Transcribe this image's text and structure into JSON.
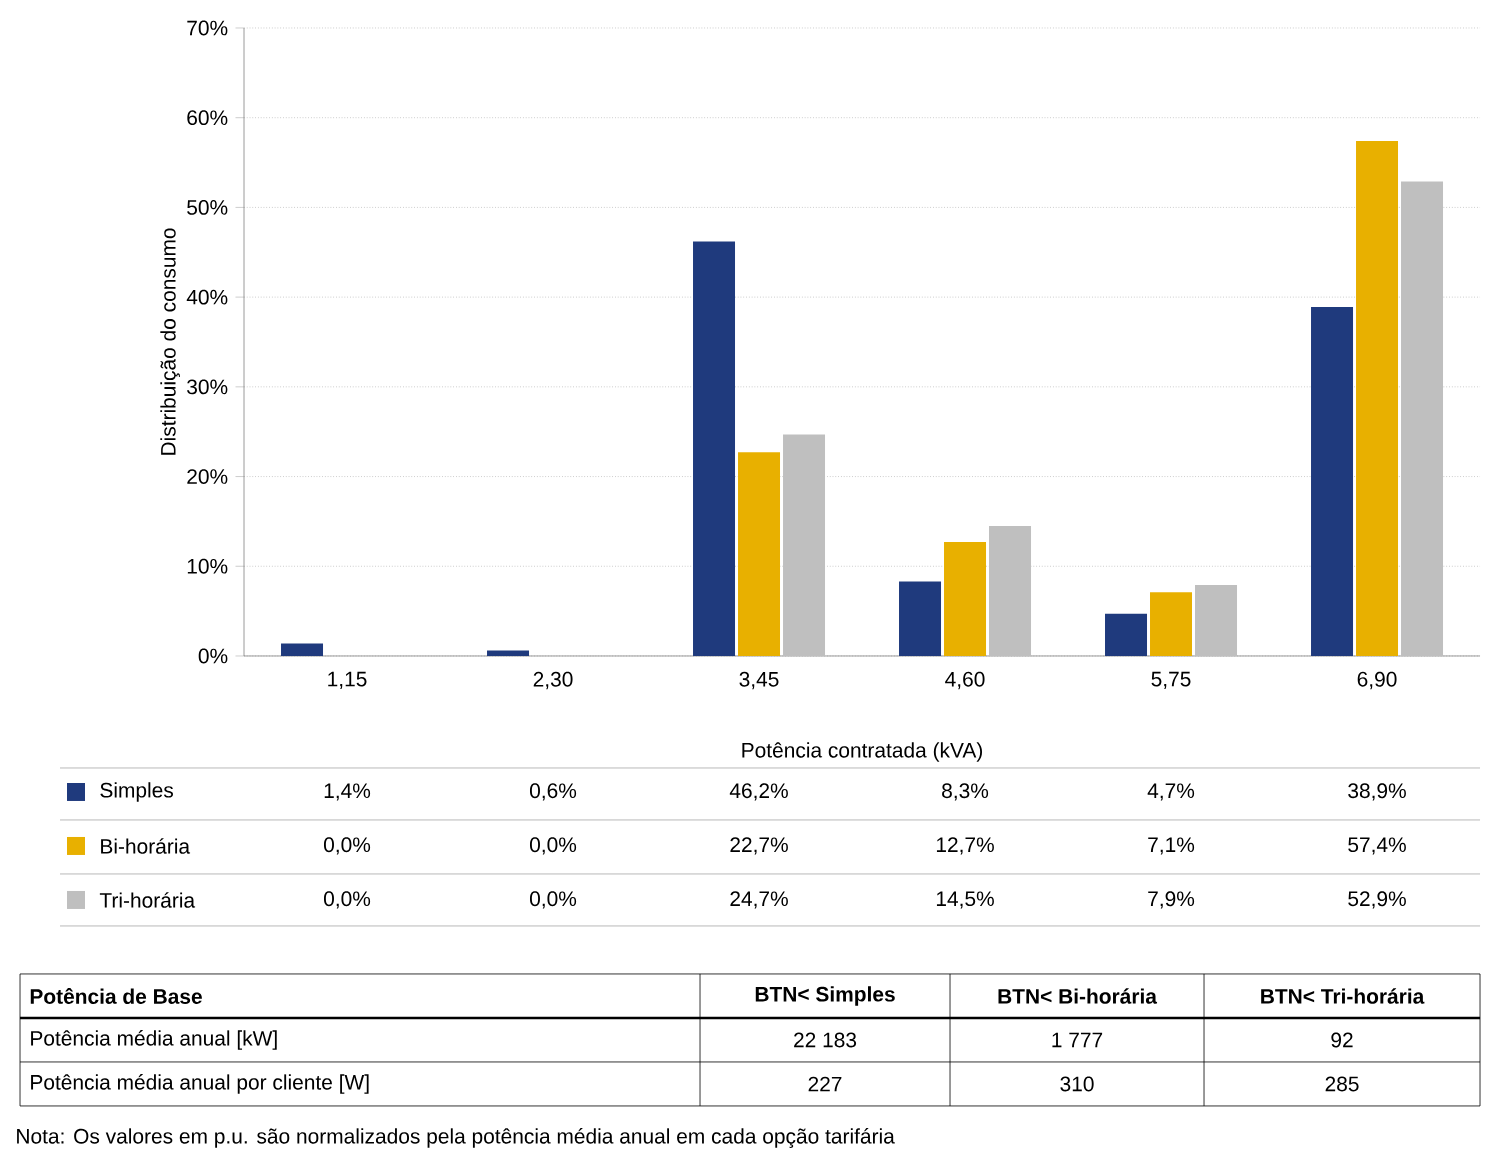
{
  "chart_data": [
    {
      "type": "bar",
      "xlabel": "Potência contratada (kVA)",
      "ylabel": "Distribuição do consumo",
      "categories": [
        "1,15",
        "2,30",
        "3,45",
        "4,60",
        "5,75",
        "6,90"
      ],
      "series": [
        {
          "name": "Simples",
          "color": "#1f3a7d",
          "values": [
            1.4,
            0.6,
            46.2,
            8.3,
            4.7,
            38.9
          ],
          "value_labels": [
            "1,4%",
            "0,6%",
            "46,2%",
            "8,3%",
            "4,7%",
            "38,9%"
          ]
        },
        {
          "name": "Bi-horária",
          "color": "#e8b000",
          "values": [
            0.0,
            0.0,
            22.7,
            12.7,
            7.1,
            57.4
          ],
          "value_labels": [
            "0,0%",
            "0,0%",
            "22,7%",
            "12,7%",
            "7,1%",
            "57,4%"
          ]
        },
        {
          "name": "Tri-horária",
          "color": "#bfbfbf",
          "values": [
            0.0,
            0.0,
            24.7,
            14.5,
            7.9,
            52.9
          ],
          "value_labels": [
            "0,0%",
            "0,0%",
            "24,7%",
            "14,5%",
            "7,9%",
            "52,9%"
          ]
        }
      ],
      "ylim": [
        0,
        70
      ],
      "yticks": [
        {
          "value": 0,
          "label": "0%"
        },
        {
          "value": 10,
          "label": "10%"
        },
        {
          "value": 20,
          "label": "20%"
        },
        {
          "value": 30,
          "label": "30%"
        },
        {
          "value": 40,
          "label": "40%"
        },
        {
          "value": 50,
          "label": "50%"
        },
        {
          "value": 60,
          "label": "60%"
        },
        {
          "value": 70,
          "label": "70%"
        }
      ],
      "grid": "y",
      "legend": "bottom"
    },
    {
      "type": "other",
      "title": "Potência de Base",
      "categories": [
        "BTN< Simples",
        "BTN< Bi-horária",
        "BTN< Tri-horária"
      ],
      "y_categories": [
        "Potência média anual [kW]",
        "Potência média anual por cliente [W]"
      ],
      "cell_labels": [
        [
          "22 183",
          "1 777",
          "92"
        ],
        [
          "227",
          "310",
          "285"
        ]
      ],
      "annotations": [
        "Nota: Os valores em p.u. são normalizados pela potência média anual em cada opção tarifária"
      ]
    }
  ]
}
